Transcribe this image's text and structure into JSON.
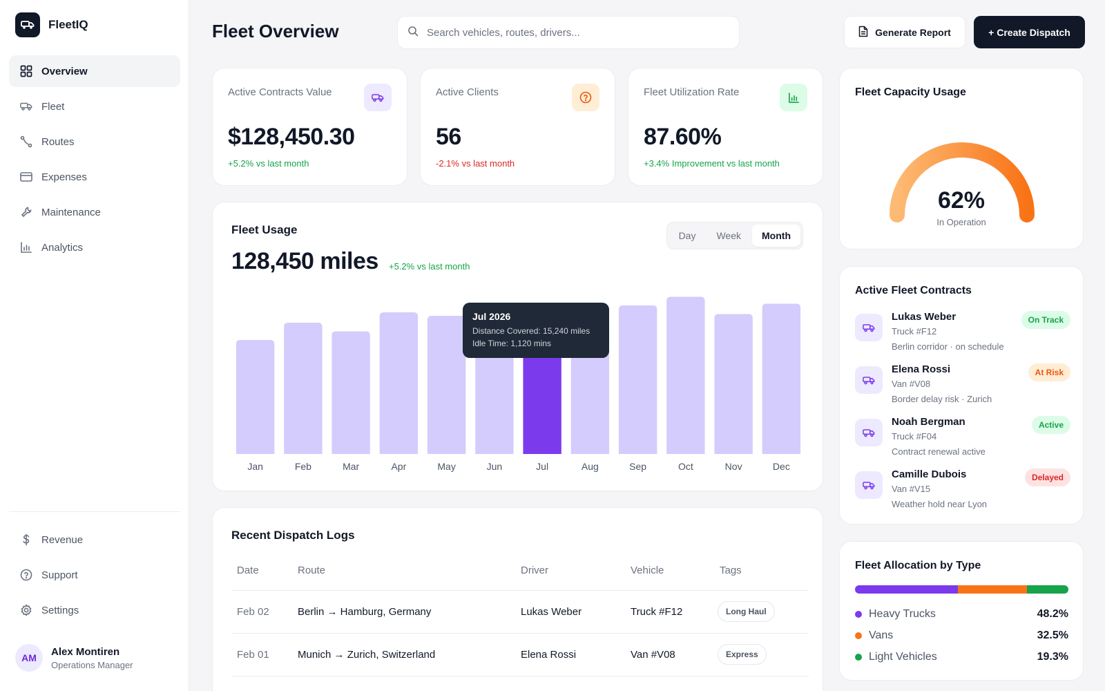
{
  "brand": {
    "name": "FleetIQ"
  },
  "nav": {
    "items": [
      {
        "label": "Overview",
        "icon": "grid-icon",
        "active": true
      },
      {
        "label": "Fleet",
        "icon": "truck-icon"
      },
      {
        "label": "Routes",
        "icon": "route-icon"
      },
      {
        "label": "Expenses",
        "icon": "card-icon"
      },
      {
        "label": "Maintenance",
        "icon": "wrench-icon"
      },
      {
        "label": "Analytics",
        "icon": "bar-chart-icon"
      }
    ],
    "bottom": [
      {
        "label": "Revenue",
        "icon": "dollar-icon"
      },
      {
        "label": "Support",
        "icon": "help-icon"
      },
      {
        "label": "Settings",
        "icon": "gear-icon"
      }
    ]
  },
  "user": {
    "initials": "AM",
    "name": "Alex Montiren",
    "role": "Operations Manager"
  },
  "header": {
    "title": "Fleet Overview",
    "search_placeholder": "Search vehicles, routes, drivers...",
    "report_label": "Generate Report",
    "create_label": "+ Create Dispatch"
  },
  "kpis": [
    {
      "label": "Active Contracts Value",
      "value": "$128,450.30",
      "delta": "+5.2% vs last month",
      "trend": "up",
      "icon": "truck-icon",
      "icon_bg": "#ede9fe",
      "icon_color": "#7c3aed"
    },
    {
      "label": "Active Clients",
      "value": "56",
      "delta": "-2.1% vs last month",
      "trend": "down",
      "icon": "help-icon",
      "icon_bg": "#ffedd5",
      "icon_color": "#ea580c"
    },
    {
      "label": "Fleet Utilization Rate",
      "value": "87.60%",
      "delta": "+3.4% Improvement vs last month",
      "trend": "up",
      "icon": "bar-chart-icon",
      "icon_bg": "#dcfce7",
      "icon_color": "#16a34a"
    }
  ],
  "usage": {
    "title": "Fleet Usage",
    "value": "128,450 miles",
    "delta": "+5.2% vs last month",
    "periods": [
      "Day",
      "Week",
      "Month"
    ],
    "active_period": "Month",
    "tooltip": {
      "title": "Jul 2026",
      "line1": "Distance Covered: 15,240 miles",
      "line2": "Idle Time: 1,120 mins"
    }
  },
  "chart_data": {
    "type": "bar",
    "categories": [
      "Jan",
      "Feb",
      "Mar",
      "Apr",
      "May",
      "Jun",
      "Jul",
      "Aug",
      "Sep",
      "Oct",
      "Nov",
      "Dec"
    ],
    "values": [
      66,
      76,
      71,
      82,
      80,
      73,
      75,
      78,
      86,
      91,
      81,
      87
    ],
    "highlight": "Jul",
    "ylim": [
      0,
      100
    ],
    "bar_color": "#d4ccfc",
    "highlight_color": "#7c3aed"
  },
  "logs": {
    "title": "Recent Dispatch Logs",
    "columns": [
      "Date",
      "Route",
      "Driver",
      "Vehicle",
      "Tags"
    ],
    "rows": [
      {
        "date": "Feb 02",
        "route": "Berlin → Hamburg, Germany",
        "driver": "Lukas Weber",
        "vehicle": "Truck #F12",
        "tag": "Long Haul"
      },
      {
        "date": "Feb 01",
        "route": "Munich → Zurich, Switzerland",
        "driver": "Elena Rossi",
        "vehicle": "Van #V08",
        "tag": "Express"
      }
    ]
  },
  "capacity": {
    "title": "Fleet Capacity Usage",
    "percent": 62,
    "value": "62%",
    "sub": "In Operation"
  },
  "contracts": {
    "title": "Active Fleet Contracts",
    "items": [
      {
        "name": "Lukas Weber",
        "vehicle": "Truck #F12",
        "note": "Berlin corridor · on schedule",
        "status": "On Track",
        "bg": "#dcfce7",
        "color": "#16a34a"
      },
      {
        "name": "Elena Rossi",
        "vehicle": "Van #V08",
        "note": "Border delay risk · Zurich",
        "status": "At Risk",
        "bg": "#ffedd5",
        "color": "#ea580c"
      },
      {
        "name": "Noah Bergman",
        "vehicle": "Truck #F04",
        "note": "Contract renewal active",
        "status": "Active",
        "bg": "#dcfce7",
        "color": "#16a34a"
      },
      {
        "name": "Camille Dubois",
        "vehicle": "Van #V15",
        "note": "Weather hold near Lyon",
        "status": "Delayed",
        "bg": "#fee2e2",
        "color": "#dc2626"
      }
    ]
  },
  "allocation": {
    "title": "Fleet Allocation by Type",
    "items": [
      {
        "label": "Heavy Trucks",
        "value": 48.2,
        "pct": "48.2%",
        "color": "#7c3aed"
      },
      {
        "label": "Vans",
        "value": 32.5,
        "pct": "32.5%",
        "color": "#f97316"
      },
      {
        "label": "Light Vehicles",
        "value": 19.3,
        "pct": "19.3%",
        "color": "#16a34a"
      }
    ]
  }
}
